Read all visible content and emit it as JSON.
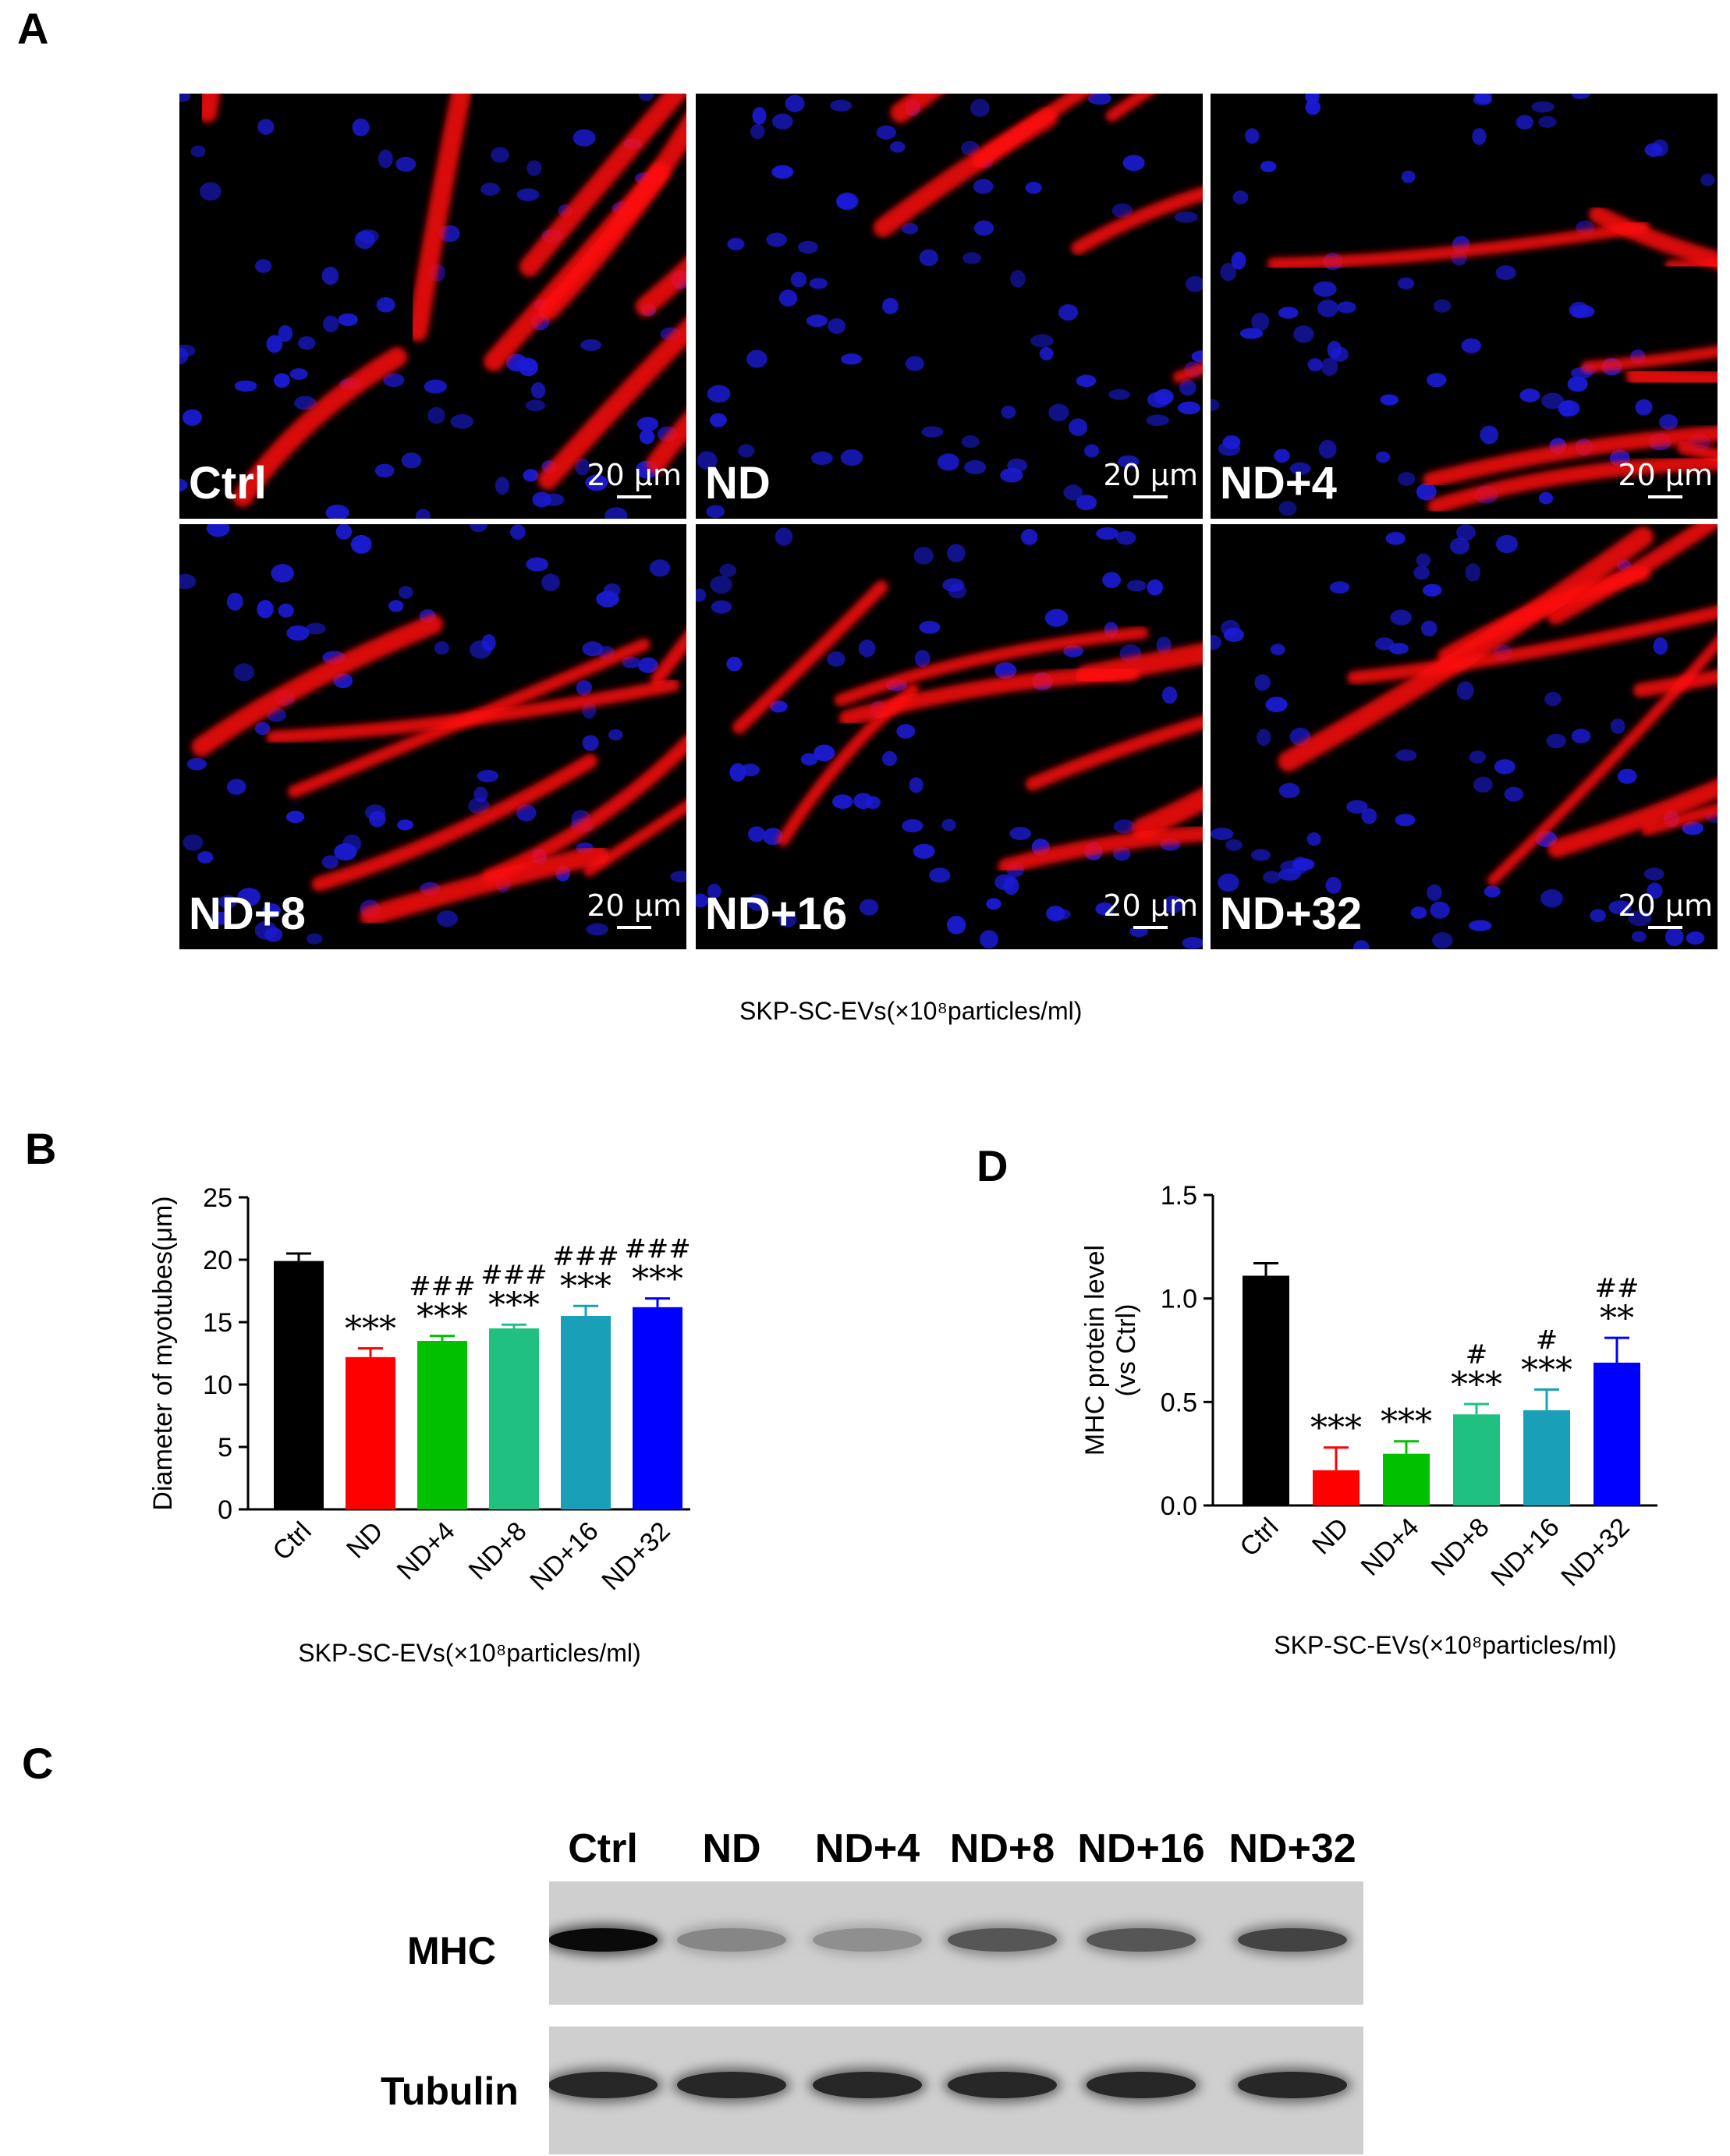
{
  "panel_A": {
    "letter": "A",
    "images": [
      {
        "label": "Ctrl",
        "scale": "20 μm"
      },
      {
        "label": "ND",
        "scale": "20 μm"
      },
      {
        "label": "ND+4",
        "scale": "20 μm"
      },
      {
        "label": "ND+8",
        "scale": "20 μm"
      },
      {
        "label": "ND+16",
        "scale": "20 μm"
      },
      {
        "label": "ND+32",
        "scale": "20 μm"
      }
    ],
    "caption": "SKP-SC-EVs(×10⁸particles/ml)"
  },
  "panel_B": {
    "letter": "B"
  },
  "panel_C": {
    "letter": "C",
    "lanes": [
      "Ctrl",
      "ND",
      "ND+4",
      "ND+8",
      "ND+16",
      "ND+32"
    ],
    "rows": [
      "MHC",
      "Tubulin"
    ],
    "mhc_band_intensity": [
      1.0,
      0.35,
      0.3,
      0.6,
      0.6,
      0.7
    ],
    "tubulin_band_intensity": [
      0.85,
      0.85,
      0.85,
      0.85,
      0.85,
      0.85
    ]
  },
  "panel_D": {
    "letter": "D"
  },
  "chart_data": [
    {
      "type": "bar",
      "categories": [
        "Ctrl",
        "ND",
        "ND+4",
        "ND+8",
        "ND+16",
        "ND+32"
      ],
      "values": [
        19.9,
        12.2,
        13.5,
        14.5,
        15.5,
        16.2
      ],
      "errors": [
        0.6,
        0.7,
        0.4,
        0.3,
        0.8,
        0.7
      ],
      "stars": [
        "",
        "***",
        "***",
        "***",
        "***",
        "***"
      ],
      "hashes": [
        "",
        "",
        "###",
        "###",
        "###",
        "###"
      ],
      "colors": [
        "#000000",
        "#ff0000",
        "#00c000",
        "#20c080",
        "#1a9fb8",
        "#0000ff"
      ],
      "ylabel": "Diameter of myotubes(μm)",
      "xlabel": "SKP-SC-EVs(×10⁸particles/ml)",
      "ylim": [
        0,
        25
      ],
      "yticks": [
        0,
        5,
        10,
        15,
        20,
        25
      ]
    },
    {
      "type": "bar",
      "categories": [
        "Ctrl",
        "ND",
        "ND+4",
        "ND+8",
        "ND+16",
        "ND+32"
      ],
      "values": [
        1.11,
        0.17,
        0.25,
        0.44,
        0.46,
        0.69
      ],
      "errors": [
        0.06,
        0.11,
        0.06,
        0.05,
        0.1,
        0.12
      ],
      "stars": [
        "",
        "***",
        "***",
        "***",
        "***",
        "**"
      ],
      "hashes": [
        "",
        "",
        "",
        "#",
        "#",
        "##"
      ],
      "colors": [
        "#000000",
        "#ff0000",
        "#00c000",
        "#20c080",
        "#1a9fb8",
        "#0000ff"
      ],
      "ylabel": "MHC protein level",
      "ylabel2": "(vs Ctrl)",
      "xlabel": "SKP-SC-EVs(×10⁸particles/ml)",
      "ylim": [
        0,
        1.5
      ],
      "yticks": [
        "0.0",
        "0.5",
        "1.0",
        "1.5"
      ]
    }
  ]
}
